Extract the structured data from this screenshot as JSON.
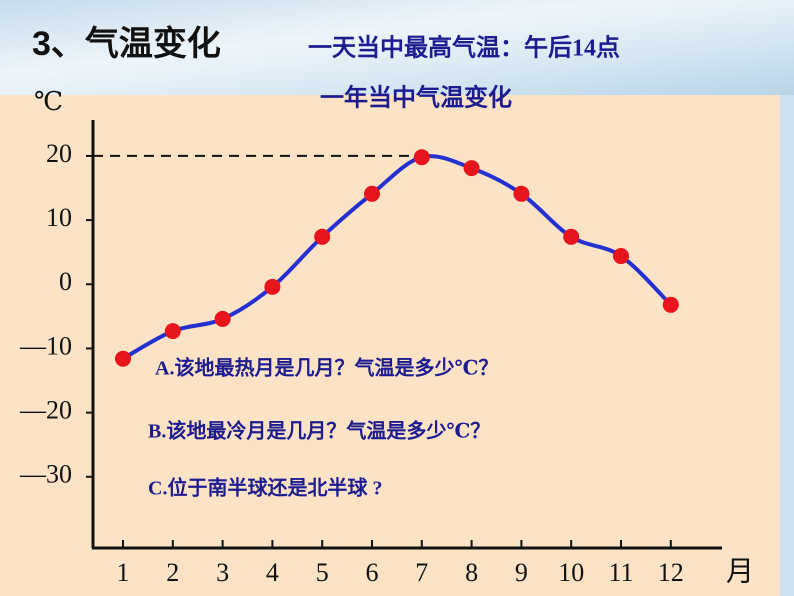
{
  "chart_data": {
    "type": "line",
    "heading": "3、气温变化",
    "subtitle": "一天当中最高气温：午后14点",
    "title": "一年当中气温变化",
    "y_label": "℃",
    "x_label": "月",
    "categories": [
      "1",
      "2",
      "3",
      "4",
      "5",
      "6",
      "7",
      "8",
      "9",
      "10",
      "11",
      "12"
    ],
    "values": [
      -11.6,
      -7.3,
      -5.4,
      -0.4,
      7.4,
      14.1,
      19.8,
      18.1,
      14.1,
      7.4,
      4.4,
      -3.2
    ],
    "color": "#2430d0",
    "marker_color": "#e8141c",
    "ylim": [
      -41.1,
      25.6
    ],
    "yticks": [
      20,
      10,
      0,
      {
        "value": -10,
        "label": "—10"
      },
      {
        "value": -20,
        "label": "—20"
      },
      {
        "value": -30,
        "label": "—30"
      }
    ],
    "annotations": [
      "A.该地最热月是几月？气温是多少℃？",
      "B.该地最冷月是几月？气温是多少℃？",
      "C.位于南半球还是北半球 ?"
    ]
  }
}
